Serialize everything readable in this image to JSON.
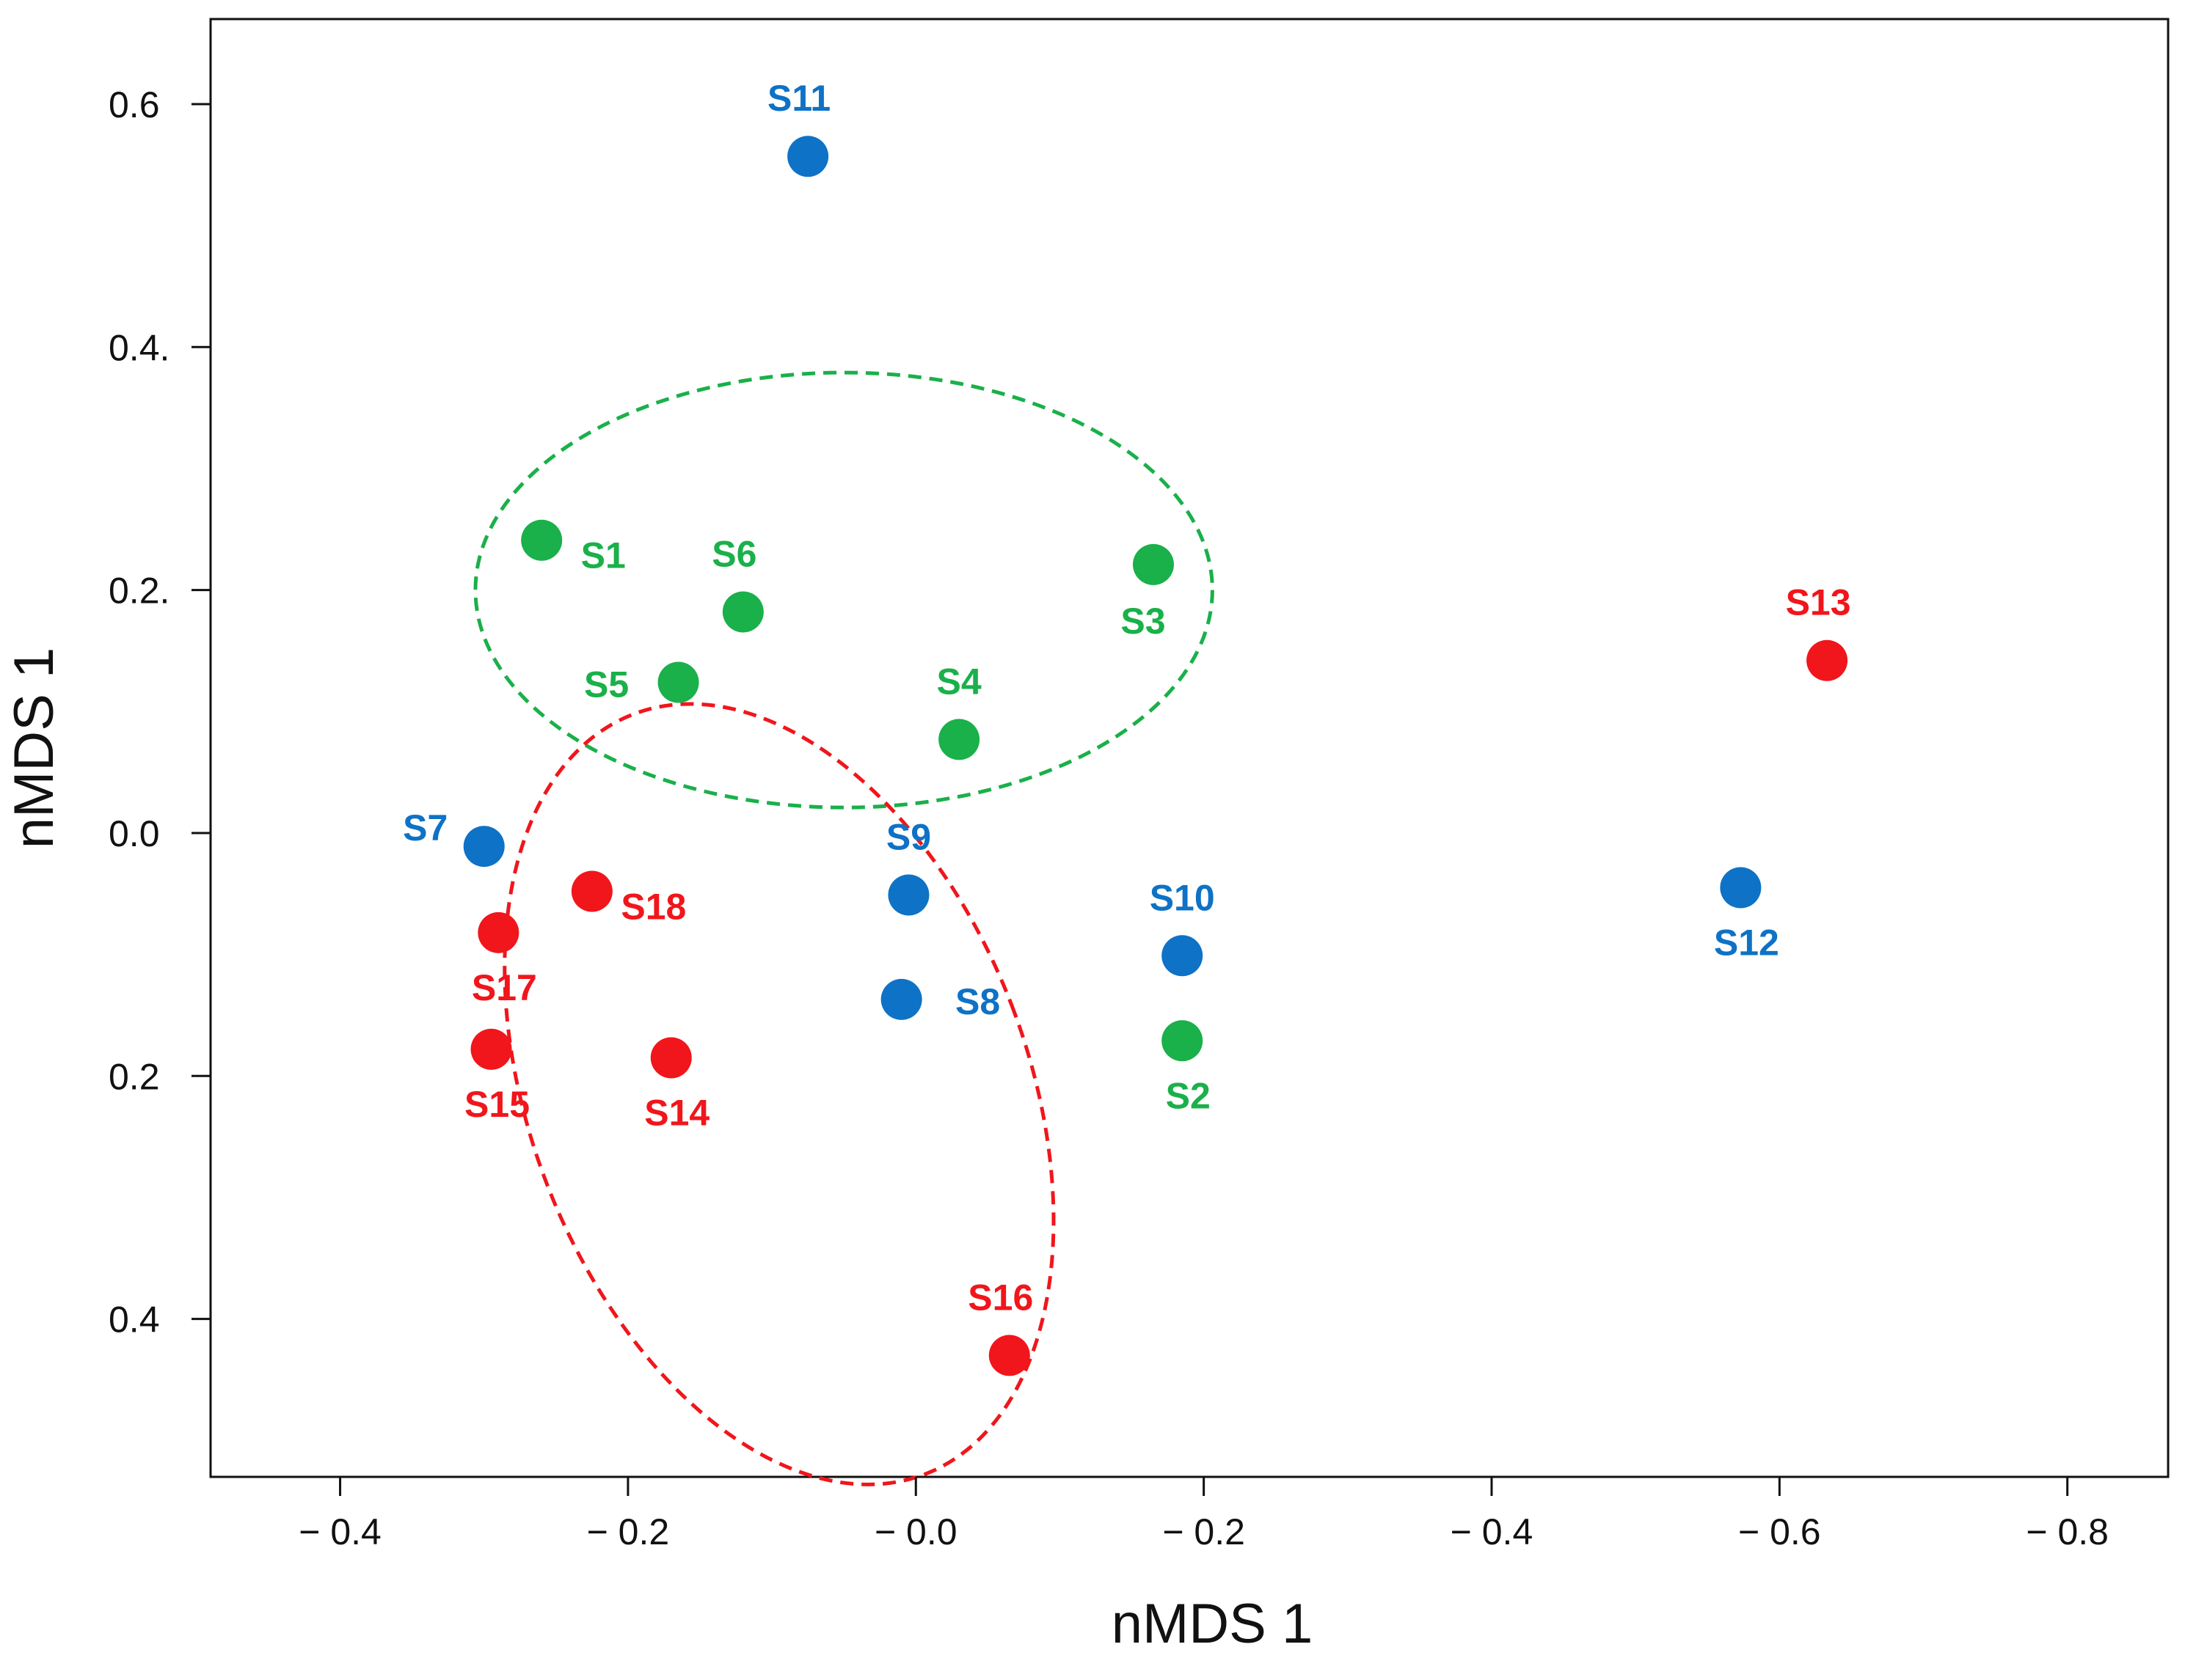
{
  "chart_data": {
    "type": "scatter",
    "title": "",
    "xlabel": "nMDS 1",
    "ylabel": "nMDS 1",
    "xlim": [
      -0.49,
      0.87
    ],
    "ylim": [
      -0.53,
      0.67
    ],
    "grid": false,
    "legend": "none",
    "x_ticks": [
      {
        "value": -0.4,
        "label": "− 0.4"
      },
      {
        "value": -0.2,
        "label": "− 0.2"
      },
      {
        "value": 0.0,
        "label": "− 0.0"
      },
      {
        "value": 0.2,
        "label": "− 0.2"
      },
      {
        "value": 0.4,
        "label": "− 0.4"
      },
      {
        "value": 0.6,
        "label": "− 0.6"
      },
      {
        "value": 0.8,
        "label": "− 0.8"
      }
    ],
    "y_ticks": [
      {
        "value": 0.6,
        "label": "0.6"
      },
      {
        "value": 0.4,
        "label": "0.4."
      },
      {
        "value": 0.2,
        "label": "0.2."
      },
      {
        "value": 0.0,
        "label": "0.0"
      },
      {
        "value": -0.2,
        "label": "0.2"
      },
      {
        "value": -0.4,
        "label": "0.4"
      }
    ],
    "colors": {
      "green": "#1ab04a",
      "blue": "#0e72c6",
      "red": "#f0161b",
      "axis": "#111111"
    },
    "points": [
      {
        "name": "S1",
        "group": "green",
        "x": -0.26,
        "y": 0.241,
        "label_pos": "lower-right"
      },
      {
        "name": "S2",
        "group": "green",
        "x": 0.185,
        "y": -0.171,
        "label_pos": "below"
      },
      {
        "name": "S3",
        "group": "green",
        "x": 0.165,
        "y": 0.221,
        "label_pos": "below-left"
      },
      {
        "name": "S4",
        "group": "green",
        "x": 0.03,
        "y": 0.077,
        "label_pos": "above"
      },
      {
        "name": "S5",
        "group": "green",
        "x": -0.165,
        "y": 0.124,
        "label_pos": "left"
      },
      {
        "name": "S6",
        "group": "green",
        "x": -0.12,
        "y": 0.182,
        "label_pos": "above-left"
      },
      {
        "name": "S7",
        "group": "blue",
        "x": -0.3,
        "y": -0.011,
        "label_pos": "upper-left"
      },
      {
        "name": "S8",
        "group": "blue",
        "x": -0.01,
        "y": -0.137,
        "label_pos": "right"
      },
      {
        "name": "S9",
        "group": "blue",
        "x": -0.005,
        "y": -0.051,
        "label_pos": "above"
      },
      {
        "name": "S10",
        "group": "blue",
        "x": 0.185,
        "y": -0.101,
        "label_pos": "above"
      },
      {
        "name": "S11",
        "group": "blue",
        "x": -0.075,
        "y": 0.557,
        "label_pos": "above-left"
      },
      {
        "name": "S12",
        "group": "blue",
        "x": 0.573,
        "y": -0.045,
        "label_pos": "below"
      },
      {
        "name": "S13",
        "group": "red",
        "x": 0.633,
        "y": 0.142,
        "label_pos": "above-left"
      },
      {
        "name": "S14",
        "group": "red",
        "x": -0.17,
        "y": -0.185,
        "label_pos": "below"
      },
      {
        "name": "S15",
        "group": "red",
        "x": -0.295,
        "y": -0.178,
        "label_pos": "below"
      },
      {
        "name": "S16",
        "group": "red",
        "x": 0.065,
        "y": -0.43,
        "label_pos": "above-left"
      },
      {
        "name": "S17",
        "group": "red",
        "x": -0.29,
        "y": -0.082,
        "label_pos": "below"
      },
      {
        "name": "S18",
        "group": "red",
        "x": -0.225,
        "y": -0.048,
        "label_pos": "lower-right"
      }
    ],
    "ellipses": [
      {
        "group": "green",
        "cx": -0.05,
        "cy": 0.2,
        "rx": 0.256,
        "ry": 0.179,
        "angle_deg": 0
      },
      {
        "group": "red",
        "cx": -0.095,
        "cy": -0.215,
        "rx": 0.173,
        "ry": 0.335,
        "angle_deg": -21
      }
    ]
  }
}
